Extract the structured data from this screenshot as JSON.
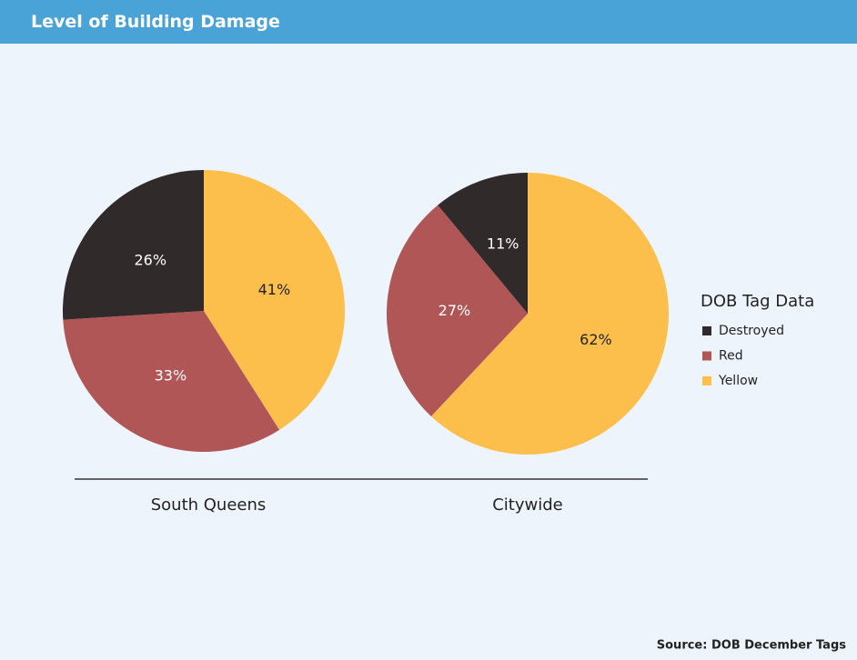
{
  "header": {
    "title": "Level of Building Damage"
  },
  "legend": {
    "title": "DOB Tag Data"
  },
  "source": "Source:  DOB December Tags",
  "chart_data": [
    {
      "type": "pie",
      "title": "South Queens",
      "categories": [
        "Destroyed",
        "Red",
        "Yellow"
      ],
      "values": [
        26,
        33,
        41
      ],
      "value_labels": [
        "26%",
        "33%",
        "41%"
      ],
      "colors": [
        "#302a2a",
        "#b05656",
        "#fdbf4b"
      ]
    },
    {
      "type": "pie",
      "title": "Citywide",
      "categories": [
        "Destroyed",
        "Red",
        "Yellow"
      ],
      "values": [
        11,
        27,
        62
      ],
      "value_labels": [
        "11%",
        "27%",
        "62%"
      ],
      "colors": [
        "#302a2a",
        "#b05656",
        "#fdbf4b"
      ]
    }
  ]
}
